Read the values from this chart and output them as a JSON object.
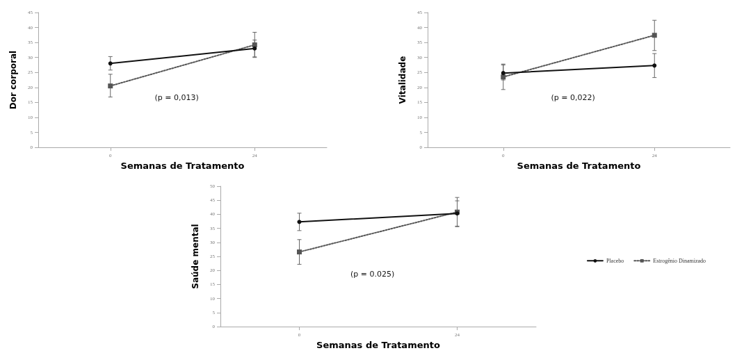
{
  "chart_data": [
    {
      "type": "line",
      "xlabel": "Semanas de Tratamento",
      "ylabel": "Dor corporal",
      "categories": [
        "0",
        "24"
      ],
      "ylim": [
        0,
        45
      ],
      "yticks": [
        0,
        5,
        10,
        15,
        20,
        25,
        30,
        35,
        40,
        45
      ],
      "grid": false,
      "legend": false,
      "annotations": [
        "(p = 0,013)"
      ],
      "series": [
        {
          "color": "#111111",
          "values": [
            28,
            33
          ],
          "errors": [
            [
              25.8,
              30.3
            ],
            [
              30.2,
              35.8
            ]
          ],
          "marker": "circle",
          "line_style": "solid"
        },
        {
          "color": "#555555",
          "values": [
            20.5,
            34.2
          ],
          "errors": [
            [
              16.8,
              24.4
            ],
            [
              30,
              38.4
            ]
          ],
          "marker": "square",
          "line_style": "dotted"
        }
      ]
    },
    {
      "type": "line",
      "xlabel": "Semanas de Tratamento",
      "ylabel": "Vitalidade",
      "categories": [
        "0",
        "24"
      ],
      "ylim": [
        0,
        45
      ],
      "yticks": [
        0,
        5,
        10,
        15,
        20,
        25,
        30,
        35,
        40,
        45
      ],
      "grid": false,
      "legend": false,
      "annotations": [
        "(p = 0,022)"
      ],
      "series": [
        {
          "color": "#111111",
          "values": [
            24.8,
            27.3
          ],
          "errors": [
            [
              22.5,
              27.8
            ],
            [
              23.3,
              31.3
            ]
          ],
          "marker": "circle",
          "line_style": "solid"
        },
        {
          "color": "#555555",
          "values": [
            23.5,
            37.4
          ],
          "errors": [
            [
              19.3,
              27.5
            ],
            [
              32.3,
              42.4
            ]
          ],
          "marker": "square",
          "line_style": "dotted"
        }
      ]
    },
    {
      "type": "line",
      "xlabel": "Semanas de Tratamento",
      "ylabel": "Saúde mental",
      "categories": [
        "0",
        "24"
      ],
      "ylim": [
        0,
        50
      ],
      "yticks": [
        0,
        5,
        10,
        15,
        20,
        25,
        30,
        35,
        40,
        45,
        50
      ],
      "grid": false,
      "legend": "right",
      "annotations": [
        "(p = 0.025)"
      ],
      "series": [
        {
          "name": "Placebo",
          "color": "#111111",
          "values": [
            37.3,
            40.3
          ],
          "errors": [
            [
              34.2,
              40.4
            ],
            [
              35.8,
              44.8
            ]
          ],
          "marker": "circle",
          "line_style": "solid"
        },
        {
          "name": "Estrogênio Dinamizado",
          "color": "#555555",
          "values": [
            26.6,
            40.8
          ],
          "errors": [
            [
              22.2,
              31
            ],
            [
              35.6,
              46
            ]
          ],
          "marker": "square",
          "line_style": "dotted"
        }
      ]
    }
  ]
}
